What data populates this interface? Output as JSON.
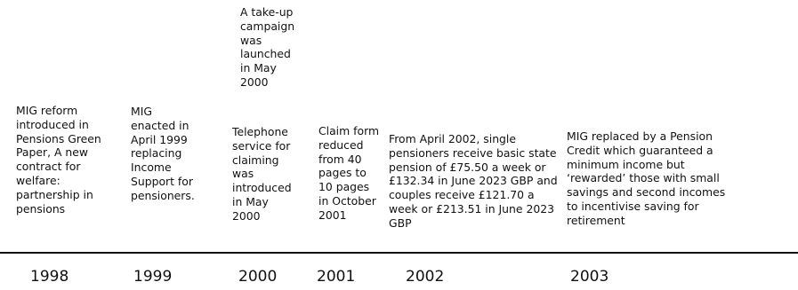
{
  "timeline": {
    "events": [
      {
        "id": "1998",
        "year": "1998",
        "text": "MIG reform\nintroduced in\nPensions Green\nPaper, A new\ncontract for\nwelfare:\npartnership in\npensions"
      },
      {
        "id": "1999",
        "year": "1999",
        "text": "MIG\nenacted in\nApril 1999\nreplacing\nIncome\nSupport for\npensioners."
      },
      {
        "id": "2000",
        "year": "2000",
        "text_upper": "A take-up\ncampaign\nwas\nlaunched\nin May\n2000",
        "text": "Telephone\nservice for\nclaiming\nwas\nintroduced\nin May\n2000"
      },
      {
        "id": "2001",
        "year": "2001",
        "text": "Claim form\nreduced\nfrom 40\npages to\n10 pages\nin October\n2001"
      },
      {
        "id": "2002",
        "year": "2002",
        "text": "From April 2002, single\npensioners receive basic state\npension of  £75.50 a week or\n£132.34 in June 2023 GBP and\ncouples receive £121.70 a\nweek or £213.51 in June 2023\nGBP"
      },
      {
        "id": "2003",
        "year": "2003",
        "text": "MIG replaced by a Pension\nCredit which guaranteed a\nminimum income but\n‘rewarded’ those with small\nsavings and second incomes\nto incentivise saving for\nretirement"
      }
    ]
  }
}
